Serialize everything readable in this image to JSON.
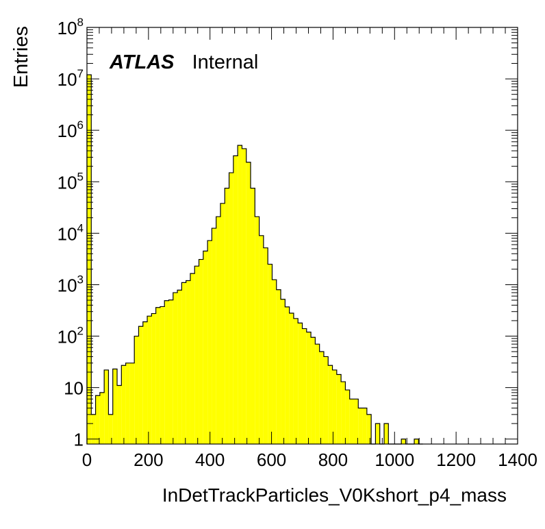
{
  "chart_data": {
    "type": "bar",
    "xlabel": "InDetTrackParticles_V0Kshort_p4_mass",
    "ylabel": "Entries",
    "xlim": [
      0,
      1400
    ],
    "ylim": [
      0.8,
      100000000
    ],
    "log_y": true,
    "x_ticks": [
      "0",
      "200",
      "400",
      "600",
      "800",
      "1000",
      "1200",
      "1400"
    ],
    "y_ticks": [
      {
        "base": "1",
        "exp": ""
      },
      {
        "base": "10",
        "exp": ""
      },
      {
        "base": "10",
        "exp": "2"
      },
      {
        "base": "10",
        "exp": "3"
      },
      {
        "base": "10",
        "exp": "4"
      },
      {
        "base": "10",
        "exp": "5"
      },
      {
        "base": "10",
        "exp": "6"
      },
      {
        "base": "10",
        "exp": "7"
      },
      {
        "base": "10",
        "exp": "8"
      }
    ],
    "label": {
      "bold": "ATLAS",
      "normal": "Internal"
    },
    "fill_color": "#ffff00",
    "bin_width": 14,
    "bins": [
      {
        "x": 0,
        "y": 12000000
      },
      {
        "x": 14,
        "y": 3
      },
      {
        "x": 28,
        "y": 7
      },
      {
        "x": 42,
        "y": 8
      },
      {
        "x": 56,
        "y": 22
      },
      {
        "x": 70,
        "y": 3
      },
      {
        "x": 84,
        "y": 23
      },
      {
        "x": 98,
        "y": 11
      },
      {
        "x": 112,
        "y": 27
      },
      {
        "x": 126,
        "y": 30
      },
      {
        "x": 140,
        "y": 30
      },
      {
        "x": 154,
        "y": 100
      },
      {
        "x": 168,
        "y": 155
      },
      {
        "x": 182,
        "y": 190
      },
      {
        "x": 196,
        "y": 245
      },
      {
        "x": 210,
        "y": 275
      },
      {
        "x": 224,
        "y": 360
      },
      {
        "x": 238,
        "y": 375
      },
      {
        "x": 252,
        "y": 490
      },
      {
        "x": 266,
        "y": 505
      },
      {
        "x": 280,
        "y": 700
      },
      {
        "x": 294,
        "y": 785
      },
      {
        "x": 308,
        "y": 1100
      },
      {
        "x": 322,
        "y": 1200
      },
      {
        "x": 336,
        "y": 1650
      },
      {
        "x": 350,
        "y": 2300
      },
      {
        "x": 364,
        "y": 3100
      },
      {
        "x": 378,
        "y": 4500
      },
      {
        "x": 392,
        "y": 7200
      },
      {
        "x": 406,
        "y": 12500
      },
      {
        "x": 420,
        "y": 21000
      },
      {
        "x": 434,
        "y": 38000
      },
      {
        "x": 448,
        "y": 75000
      },
      {
        "x": 462,
        "y": 150000
      },
      {
        "x": 476,
        "y": 320000
      },
      {
        "x": 490,
        "y": 510000
      },
      {
        "x": 504,
        "y": 440000
      },
      {
        "x": 518,
        "y": 240000
      },
      {
        "x": 532,
        "y": 75000
      },
      {
        "x": 546,
        "y": 21000
      },
      {
        "x": 560,
        "y": 9000
      },
      {
        "x": 574,
        "y": 5200
      },
      {
        "x": 588,
        "y": 2500
      },
      {
        "x": 602,
        "y": 1250
      },
      {
        "x": 616,
        "y": 800
      },
      {
        "x": 630,
        "y": 520
      },
      {
        "x": 644,
        "y": 370
      },
      {
        "x": 658,
        "y": 280
      },
      {
        "x": 672,
        "y": 220
      },
      {
        "x": 686,
        "y": 180
      },
      {
        "x": 700,
        "y": 140
      },
      {
        "x": 714,
        "y": 120
      },
      {
        "x": 728,
        "y": 95
      },
      {
        "x": 742,
        "y": 70
      },
      {
        "x": 756,
        "y": 50
      },
      {
        "x": 770,
        "y": 40
      },
      {
        "x": 784,
        "y": 27
      },
      {
        "x": 798,
        "y": 22
      },
      {
        "x": 812,
        "y": 18
      },
      {
        "x": 826,
        "y": 13
      },
      {
        "x": 840,
        "y": 9
      },
      {
        "x": 854,
        "y": 6
      },
      {
        "x": 868,
        "y": 6
      },
      {
        "x": 882,
        "y": 4
      },
      {
        "x": 896,
        "y": 4
      },
      {
        "x": 910,
        "y": 3
      },
      {
        "x": 924,
        "y": 0
      },
      {
        "x": 938,
        "y": 2
      },
      {
        "x": 952,
        "y": 0
      },
      {
        "x": 966,
        "y": 2
      },
      {
        "x": 980,
        "y": 0
      },
      {
        "x": 994,
        "y": 0
      },
      {
        "x": 1008,
        "y": 0
      },
      {
        "x": 1022,
        "y": 1
      },
      {
        "x": 1036,
        "y": 0
      },
      {
        "x": 1050,
        "y": 0
      },
      {
        "x": 1064,
        "y": 1
      },
      {
        "x": 1078,
        "y": 0
      }
    ]
  }
}
